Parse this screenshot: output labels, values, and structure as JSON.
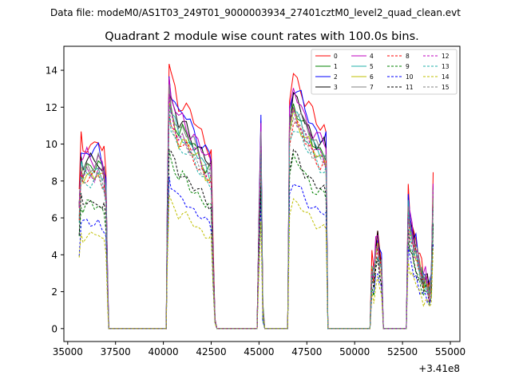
{
  "suptitle": "Data file: modeM0/AS1T03_249T01_9000003934_27401cztM0_level2_quad_clean.evt",
  "chart_data": {
    "type": "line",
    "title": "Quadrant 2 module wise count rates with 100.0s bins.",
    "xlabel": "",
    "ylabel": "",
    "x_offset_label": "+3.41e8",
    "xlim": [
      34800,
      55500
    ],
    "ylim": [
      -0.7,
      15.3
    ],
    "xticks": [
      35000,
      37500,
      40000,
      42500,
      45000,
      47500,
      50000,
      52500,
      55000
    ],
    "xtick_labels": [
      "35000",
      "37500",
      "40000",
      "42500",
      "45000",
      "47500",
      "50000",
      "52500",
      "55000"
    ],
    "yticks": [
      0,
      2,
      4,
      6,
      8,
      10,
      12,
      14
    ],
    "ytick_labels": [
      "0",
      "2",
      "4",
      "6",
      "8",
      "10",
      "12",
      "14"
    ],
    "grid": false,
    "legend_position": "top-right",
    "legend_columns": 4,
    "envelope": {
      "x": [
        35600,
        35700,
        35800,
        36000,
        36200,
        36400,
        36600,
        36800,
        36900,
        37000,
        37100,
        37150,
        40150,
        40200,
        40300,
        40400,
        40600,
        40800,
        41000,
        41200,
        41400,
        41600,
        41800,
        42000,
        42200,
        42400,
        42500,
        42600,
        42700,
        42800,
        44900,
        45000,
        45100,
        45200,
        45300,
        46500,
        46600,
        46800,
        47000,
        47200,
        47400,
        47600,
        47800,
        48000,
        48200,
        48400,
        48500,
        48600,
        50800,
        50900,
        51000,
        51100,
        51200,
        51300,
        51400,
        51500,
        52700,
        52800,
        52900,
        53000,
        53100,
        53200,
        53300,
        53400,
        53500,
        53600,
        53700,
        53800,
        53900,
        54000,
        54100
      ],
      "y": [
        7.0,
        9.7,
        9.3,
        9.6,
        9.5,
        9.4,
        9.7,
        9.2,
        9.0,
        8.0,
        2.0,
        0.0,
        0.0,
        6.0,
        13.8,
        13.0,
        12.3,
        11.6,
        11.7,
        11.4,
        11.0,
        10.7,
        10.4,
        10.0,
        9.6,
        9.4,
        9.2,
        4.0,
        0.5,
        0.0,
        0.0,
        6.0,
        11.2,
        1.0,
        0.0,
        0.0,
        12.0,
        13.2,
        12.8,
        12.4,
        11.8,
        11.4,
        11.0,
        10.7,
        10.5,
        10.4,
        10.2,
        0.0,
        0.0,
        3.5,
        3.0,
        4.6,
        5.1,
        4.0,
        3.6,
        0.0,
        0.0,
        7.2,
        6.0,
        5.6,
        4.8,
        4.6,
        4.1,
        3.6,
        3.2,
        2.8,
        3.0,
        2.6,
        2.1,
        2.7,
        8.0
      ]
    },
    "series": [
      {
        "name": "0",
        "color": "#ff0000",
        "dashed": false,
        "scale": 1.05
      },
      {
        "name": "1",
        "color": "#008000",
        "dashed": false,
        "scale": 0.92
      },
      {
        "name": "2",
        "color": "#0000ff",
        "dashed": false,
        "scale": 1.0
      },
      {
        "name": "3",
        "color": "#000000",
        "dashed": false,
        "scale": 0.95
      },
      {
        "name": "4",
        "color": "#bf00bf",
        "dashed": false,
        "scale": 0.97
      },
      {
        "name": "5",
        "color": "#20b2aa",
        "dashed": false,
        "scale": 0.9
      },
      {
        "name": "6",
        "color": "#bfbf00",
        "dashed": false,
        "scale": 0.88
      },
      {
        "name": "7",
        "color": "#808080",
        "dashed": false,
        "scale": 0.93
      },
      {
        "name": "8",
        "color": "#ff0000",
        "dashed": true,
        "scale": 0.86
      },
      {
        "name": "9",
        "color": "#008000",
        "dashed": true,
        "scale": 0.7
      },
      {
        "name": "10",
        "color": "#0000ff",
        "dashed": true,
        "scale": 0.6
      },
      {
        "name": "11",
        "color": "#000000",
        "dashed": true,
        "scale": 0.72
      },
      {
        "name": "12",
        "color": "#bf00bf",
        "dashed": true,
        "scale": 0.89
      },
      {
        "name": "13",
        "color": "#20b2aa",
        "dashed": true,
        "scale": 0.84
      },
      {
        "name": "14",
        "color": "#bfbf00",
        "dashed": true,
        "scale": 0.53
      },
      {
        "name": "15",
        "color": "#808080",
        "dashed": true,
        "scale": 0.87
      }
    ]
  }
}
